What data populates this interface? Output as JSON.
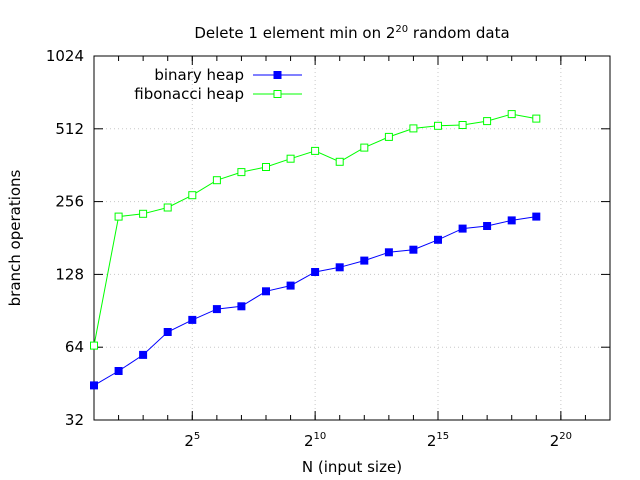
{
  "chart_data": {
    "type": "line",
    "title_prefix": "Delete 1 element min on 2",
    "title_exp": "20",
    "title_suffix": " random data",
    "xlabel": "N (input size)",
    "ylabel": "branch operations",
    "xlim": [
      1,
      22
    ],
    "ylim": [
      32,
      1024
    ],
    "y_scale": "log2",
    "y_ticks": [
      32,
      64,
      128,
      256,
      512,
      1024
    ],
    "x_ticks": [
      {
        "value": 5,
        "base": "2",
        "exp": "5"
      },
      {
        "value": 10,
        "base": "2",
        "exp": "10"
      },
      {
        "value": 15,
        "base": "2",
        "exp": "15"
      },
      {
        "value": 20,
        "base": "2",
        "exp": "20"
      }
    ],
    "grid": true,
    "legend_position": "top-left",
    "series": [
      {
        "name": "binary heap",
        "color": "#0000ff",
        "marker": "filled-square",
        "x": [
          1,
          2,
          3,
          4,
          5,
          6,
          7,
          8,
          9,
          10,
          11,
          12,
          13,
          14,
          15,
          16,
          17,
          18,
          19
        ],
        "y": [
          44.5,
          51,
          59.5,
          74,
          83,
          92,
          94.5,
          109,
          115,
          131,
          137,
          146,
          158,
          162,
          178,
          198,
          203,
          214,
          222
        ]
      },
      {
        "name": "fibonacci heap",
        "color": "#00ff00",
        "marker": "open-square",
        "x": [
          1,
          2,
          3,
          4,
          5,
          6,
          7,
          8,
          9,
          10,
          11,
          12,
          13,
          14,
          15,
          16,
          17,
          18,
          19
        ],
        "y": [
          65,
          222,
          228,
          242,
          272,
          314,
          339,
          356,
          385,
          415,
          374,
          428,
          474,
          514,
          527,
          531,
          551,
          589,
          564
        ]
      }
    ]
  }
}
